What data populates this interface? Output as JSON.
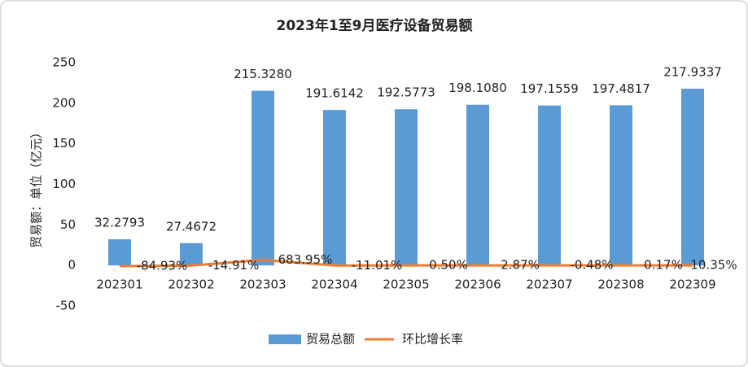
{
  "chart_data": {
    "type": "bar",
    "title": "2023年1至9月医疗设备贸易额",
    "y_label": "贸易额：单位（亿元）",
    "categories": [
      "202301",
      "202302",
      "202303",
      "202304",
      "202305",
      "202306",
      "202307",
      "202308",
      "202309"
    ],
    "series": [
      {
        "name": "贸易总额",
        "type": "bar",
        "color": "#5b9bd5",
        "values": [
          32.2793,
          27.4672,
          215.328,
          191.6142,
          192.5773,
          198.108,
          197.1559,
          197.4817,
          217.9337
        ],
        "value_labels": [
          "32.2793",
          "27.4672",
          "215.3280",
          "191.6142",
          "192.5773",
          "198.1080",
          "197.1559",
          "197.4817",
          "217.9337"
        ]
      },
      {
        "name": "环比增长率",
        "type": "line",
        "color": "#ed7d31",
        "values": [
          -0.8493,
          -0.1491,
          6.8395,
          -0.1101,
          0.005,
          0.0287,
          -0.0048,
          0.0017,
          0.1035
        ],
        "value_labels": [
          "-84.93%",
          "-14.91%",
          "683.95%",
          "-11.01%",
          "0.50%",
          "2.87%",
          "-0.48%",
          "0.17%",
          "10.35%"
        ]
      }
    ],
    "ylim": [
      -50,
      250
    ],
    "yticks": [
      -50,
      0,
      50,
      100,
      150,
      200,
      250
    ],
    "grid": false,
    "legend": "bottom"
  }
}
